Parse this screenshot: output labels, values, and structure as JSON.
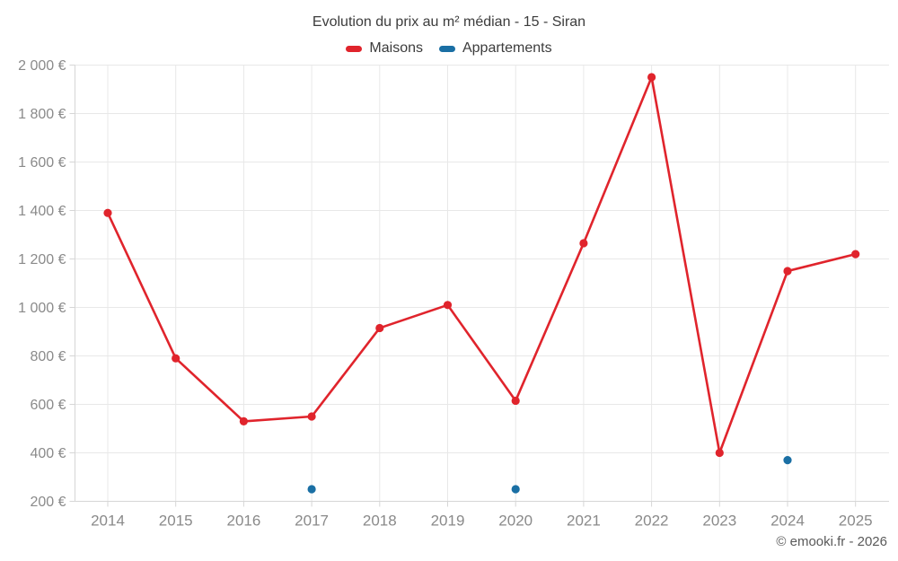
{
  "chart_data": {
    "type": "line",
    "title": "Evolution du prix au m² médian - 15 - Siran",
    "footer": "© emooki.fr - 2026",
    "categories": [
      "2014",
      "2015",
      "2016",
      "2017",
      "2018",
      "2019",
      "2020",
      "2021",
      "2022",
      "2023",
      "2024",
      "2025"
    ],
    "series": [
      {
        "name": "Maisons",
        "color": "#e0242c",
        "values": [
          1390,
          790,
          530,
          550,
          915,
          1010,
          615,
          1265,
          1950,
          400,
          1150,
          1220
        ]
      },
      {
        "name": "Appartements",
        "color": "#1a6fa4",
        "values": [
          null,
          null,
          null,
          250,
          null,
          null,
          250,
          null,
          null,
          null,
          370,
          null
        ]
      }
    ],
    "ylim": [
      200,
      2000
    ],
    "ytick_step": 200,
    "y_suffix": " €",
    "grid": true,
    "legend_position": "top",
    "axis_label_color": "#8a8a8a",
    "gridline_color": "#e8e8e8",
    "axisline_color": "#d6d6d6"
  }
}
